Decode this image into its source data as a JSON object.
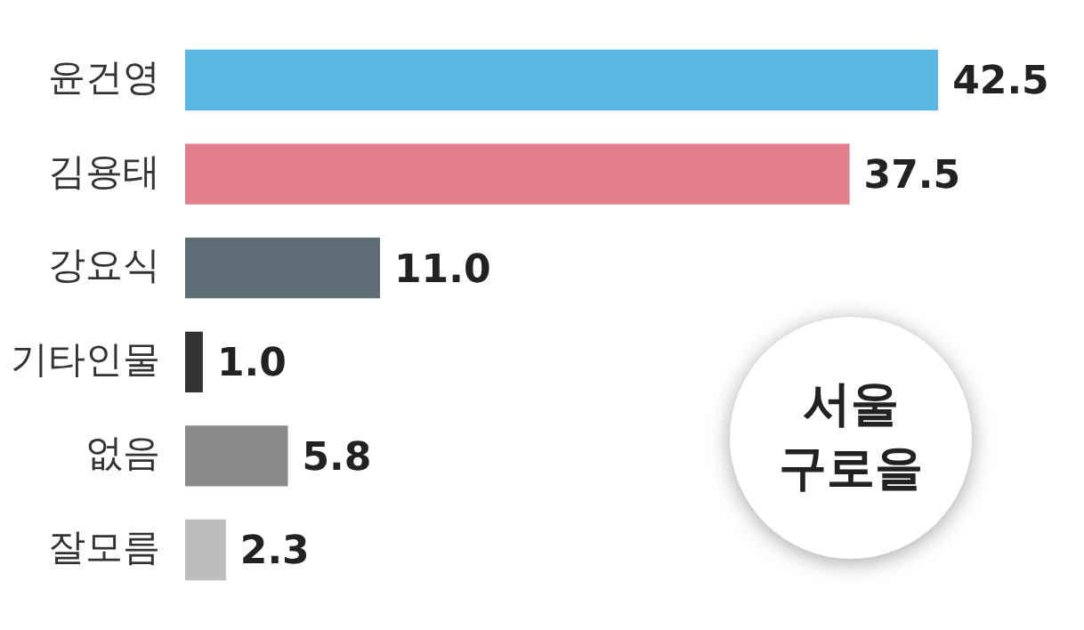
{
  "chart_data": {
    "type": "bar",
    "orientation": "horizontal",
    "title": "서울\n구로을",
    "categories": [
      "윤건영",
      "김용태",
      "강요식",
      "기타인물",
      "없음",
      "잘모름"
    ],
    "values": [
      42.5,
      37.5,
      11.0,
      1.0,
      5.8,
      2.3
    ],
    "value_labels": [
      "42.5",
      "37.5",
      "11.0",
      "1.0",
      "5.8",
      "2.3"
    ],
    "colors": [
      "#5bb8e2",
      "#e37f8c",
      "#5e6e77",
      "#333333",
      "#8a8a8a",
      "#bdbdbd"
    ],
    "data_labels": true
  }
}
